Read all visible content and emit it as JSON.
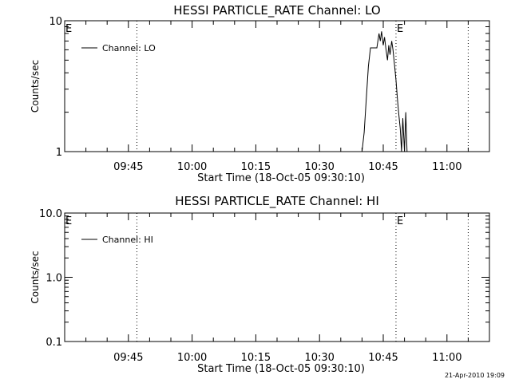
{
  "timestamp": "21-Apr-2010 19:09",
  "chart_data": [
    {
      "type": "line",
      "title": "HESSI PARTICLE_RATE Channel: LO",
      "xlabel": "Start Time (18-Oct-05 09:30:10)",
      "ylabel": "Counts/sec",
      "y_scale": "log",
      "ylim": [
        1,
        10
      ],
      "y_ticks": [
        {
          "value": 1,
          "label": "1"
        },
        {
          "value": 10,
          "label": "10"
        }
      ],
      "xlim": [
        "09:30",
        "11:10"
      ],
      "x_ticks": [
        "09:45",
        "10:00",
        "10:15",
        "10:30",
        "10:45",
        "11:00"
      ],
      "legend_position": "top-left",
      "series": [
        {
          "name": "Channel: LO",
          "x": [
            "10:40",
            "10:40.5",
            "10:41",
            "10:41.5",
            "10:42",
            "10:42.5",
            "10:43",
            "10:43.5",
            "10:44",
            "10:44.3",
            "10:44.6",
            "10:45",
            "10:45.3",
            "10:45.6",
            "10:46",
            "10:46.3",
            "10:46.6",
            "10:47",
            "10:47.3",
            "10:47.6",
            "10:48",
            "10:48.3",
            "10:48.6",
            "10:49",
            "10:49.3",
            "10:49.6",
            "10:50",
            "10:50.3",
            "10:50.6"
          ],
          "y": [
            1.0,
            1.4,
            2.5,
            4.5,
            6.2,
            6.2,
            6.2,
            6.2,
            8.0,
            7.0,
            8.3,
            6.5,
            7.5,
            6.2,
            5.0,
            6.5,
            5.5,
            7.0,
            6.0,
            4.8,
            3.5,
            2.6,
            2.0,
            1.5,
            1.0,
            1.8,
            1.0,
            2.0,
            1.0
          ]
        }
      ],
      "markers": [
        {
          "x": "09:47",
          "label": "",
          "style": "dotted"
        },
        {
          "x": "10:48",
          "label": "E",
          "style": "dotted"
        },
        {
          "x": "11:05",
          "label": "",
          "style": "dotted"
        },
        {
          "x": "09:30",
          "label": "E",
          "style": "none"
        }
      ]
    },
    {
      "type": "line",
      "title": "HESSI PARTICLE_RATE Channel: HI",
      "xlabel": "Start Time (18-Oct-05 09:30:10)",
      "ylabel": "Counts/sec",
      "y_scale": "log",
      "ylim": [
        0.1,
        10
      ],
      "y_ticks": [
        {
          "value": 0.1,
          "label": "0.1"
        },
        {
          "value": 1,
          "label": "1.0"
        },
        {
          "value": 10,
          "label": "10.0"
        }
      ],
      "xlim": [
        "09:30",
        "11:10"
      ],
      "x_ticks": [
        "09:45",
        "10:00",
        "10:15",
        "10:30",
        "10:45",
        "11:00"
      ],
      "legend_position": "top-left",
      "series": [
        {
          "name": "Channel: HI",
          "x": [],
          "y": []
        }
      ],
      "markers": [
        {
          "x": "09:47",
          "label": "",
          "style": "dotted"
        },
        {
          "x": "10:48",
          "label": "E",
          "style": "dotted"
        },
        {
          "x": "11:05",
          "label": "",
          "style": "dotted"
        },
        {
          "x": "09:30",
          "label": "E",
          "style": "none"
        }
      ]
    }
  ]
}
